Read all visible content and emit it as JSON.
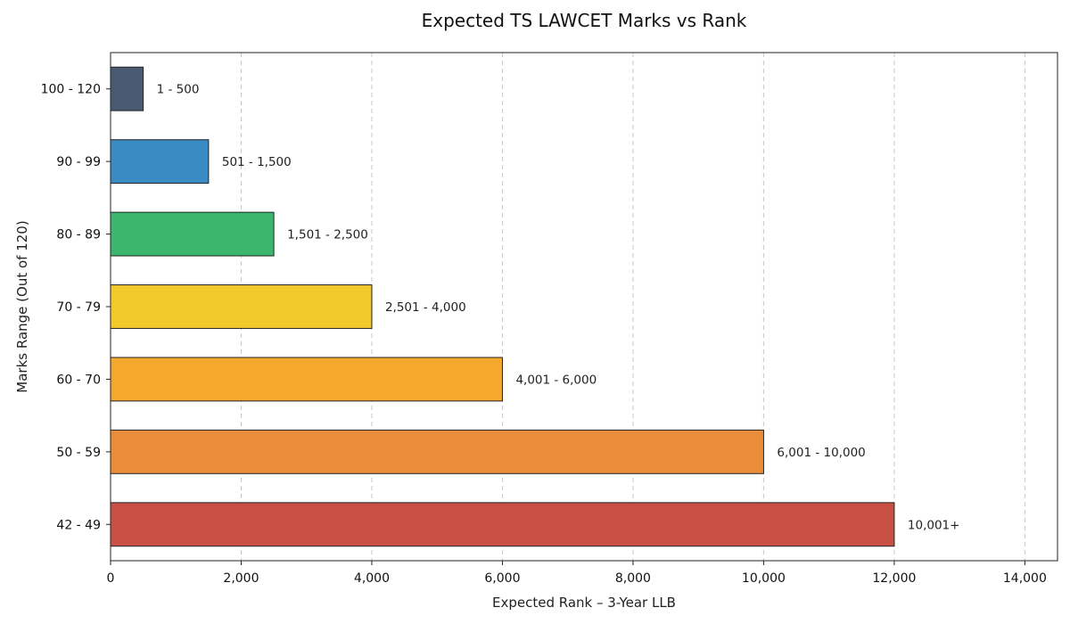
{
  "chart_data": {
    "type": "bar",
    "orientation": "horizontal",
    "title": "Expected TS LAWCET Marks vs Rank",
    "xlabel": "Expected Rank – 3-Year LLB",
    "ylabel": "Marks Range (Out of 120)",
    "xlim": [
      0,
      14500
    ],
    "xticks": [
      0,
      2000,
      4000,
      6000,
      8000,
      10000,
      12000,
      14000
    ],
    "xtick_labels": [
      "0",
      "2,000",
      "4,000",
      "6,000",
      "8,000",
      "10,000",
      "12,000",
      "14,000"
    ],
    "grid": "x-dashed",
    "categories": [
      "100 - 120",
      "90 - 99",
      "80 - 89",
      "70 - 79",
      "60 - 70",
      "50 - 59",
      "42 - 49"
    ],
    "values": [
      500,
      1500,
      2500,
      4000,
      6000,
      10000,
      12000
    ],
    "data_labels": [
      "1 - 500",
      "501 - 1,500",
      "1,501 - 2,500",
      "2,501 - 4,000",
      "4,001 - 6,000",
      "6,001 - 10,000",
      "10,001+"
    ],
    "colors": [
      "#4a5a70",
      "#3a8ac4",
      "#3cb56d",
      "#f2c92b",
      "#f5a82d",
      "#ea8d3a",
      "#c84f43"
    ]
  }
}
